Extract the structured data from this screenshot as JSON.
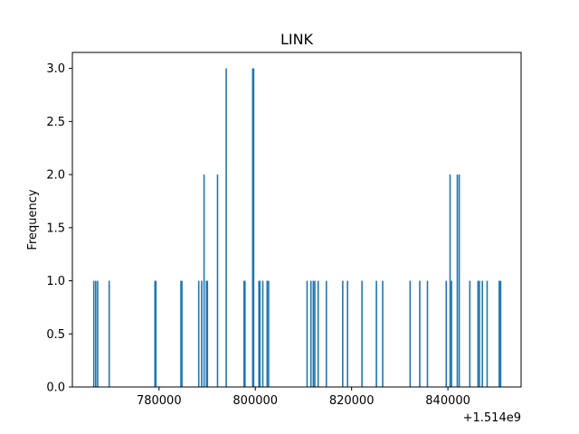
{
  "chart_data": {
    "type": "bar",
    "title": "LINK",
    "xlabel": "",
    "ylabel": "Frequency",
    "x_offset_label": "+1.514e9",
    "xlim": [
      762000,
      855200
    ],
    "ylim": [
      0,
      3.15
    ],
    "x_ticks": [
      780000,
      800000,
      820000,
      840000
    ],
    "x_tick_labels": [
      "780000",
      "800000",
      "820000",
      "840000"
    ],
    "y_ticks": [
      0,
      0.5,
      1.0,
      1.5,
      2.0,
      2.5,
      3.0
    ],
    "y_tick_labels": [
      "0.0",
      "0.5",
      "1.0",
      "1.5",
      "2.0",
      "2.5",
      "3.0"
    ],
    "grid": false,
    "bar_color": "#1f77b4",
    "bin_width": 230,
    "bins": [
      {
        "x": 766300,
        "count": 1
      },
      {
        "x": 766700,
        "count": 1
      },
      {
        "x": 767100,
        "count": 1
      },
      {
        "x": 769500,
        "count": 1
      },
      {
        "x": 779000,
        "count": 1
      },
      {
        "x": 779200,
        "count": 1
      },
      {
        "x": 784400,
        "count": 1
      },
      {
        "x": 784600,
        "count": 1
      },
      {
        "x": 788100,
        "count": 1
      },
      {
        "x": 788700,
        "count": 1
      },
      {
        "x": 789200,
        "count": 2
      },
      {
        "x": 789700,
        "count": 1
      },
      {
        "x": 789900,
        "count": 1
      },
      {
        "x": 792000,
        "count": 2
      },
      {
        "x": 793800,
        "count": 3
      },
      {
        "x": 797500,
        "count": 1
      },
      {
        "x": 797700,
        "count": 1
      },
      {
        "x": 799300,
        "count": 3
      },
      {
        "x": 799500,
        "count": 3
      },
      {
        "x": 800600,
        "count": 1
      },
      {
        "x": 800800,
        "count": 1
      },
      {
        "x": 801400,
        "count": 1
      },
      {
        "x": 802300,
        "count": 1
      },
      {
        "x": 802600,
        "count": 1
      },
      {
        "x": 810600,
        "count": 1
      },
      {
        "x": 811400,
        "count": 1
      },
      {
        "x": 811900,
        "count": 1
      },
      {
        "x": 812200,
        "count": 1
      },
      {
        "x": 812900,
        "count": 1
      },
      {
        "x": 814600,
        "count": 1
      },
      {
        "x": 818000,
        "count": 1
      },
      {
        "x": 819000,
        "count": 1
      },
      {
        "x": 822000,
        "count": 1
      },
      {
        "x": 825000,
        "count": 1
      },
      {
        "x": 826300,
        "count": 1
      },
      {
        "x": 832000,
        "count": 1
      },
      {
        "x": 834000,
        "count": 1
      },
      {
        "x": 835600,
        "count": 1
      },
      {
        "x": 839500,
        "count": 1
      },
      {
        "x": 840300,
        "count": 2
      },
      {
        "x": 840600,
        "count": 1
      },
      {
        "x": 841800,
        "count": 2
      },
      {
        "x": 842200,
        "count": 2
      },
      {
        "x": 844400,
        "count": 1
      },
      {
        "x": 846100,
        "count": 1
      },
      {
        "x": 846400,
        "count": 1
      },
      {
        "x": 847000,
        "count": 1
      },
      {
        "x": 848000,
        "count": 1
      },
      {
        "x": 850500,
        "count": 1
      },
      {
        "x": 850800,
        "count": 1
      }
    ]
  }
}
